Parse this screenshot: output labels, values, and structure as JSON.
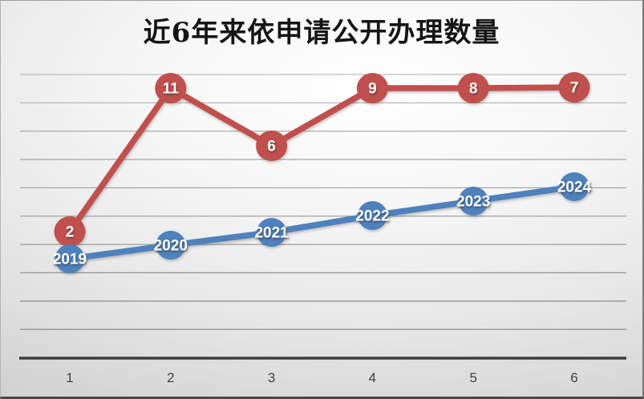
{
  "title": "近6年来依申请公开办理数量",
  "chart_data": {
    "type": "line",
    "title": "近6年来依申请公开办理数量",
    "categories": [
      "1",
      "2",
      "3",
      "4",
      "5",
      "6"
    ],
    "series": [
      {
        "name": "red-series",
        "color": "#C0504D",
        "values": [
          2,
          11,
          6,
          9,
          8,
          7
        ],
        "point_labels": [
          "2",
          "11",
          "6",
          "9",
          "8",
          "7"
        ]
      },
      {
        "name": "blue-series",
        "color": "#4F81BD",
        "values": [
          2019,
          2020,
          2021,
          2022,
          2023,
          2024
        ],
        "point_labels": [
          "2019",
          "2020",
          "2021",
          "2022",
          "2023",
          "2024"
        ]
      }
    ],
    "xlabel": "",
    "ylabel": "",
    "y_axis_labels_visible": false,
    "grid": true,
    "legend_position": "none"
  },
  "colors": {
    "red_series": "#C0504D",
    "blue_series": "#4F81BD",
    "gridline": "#A6A6A6",
    "axis_line": "#3D3D3D",
    "tick_text": "#404040",
    "point_label_text": "#FFFFFF",
    "title_text": "#151515"
  }
}
